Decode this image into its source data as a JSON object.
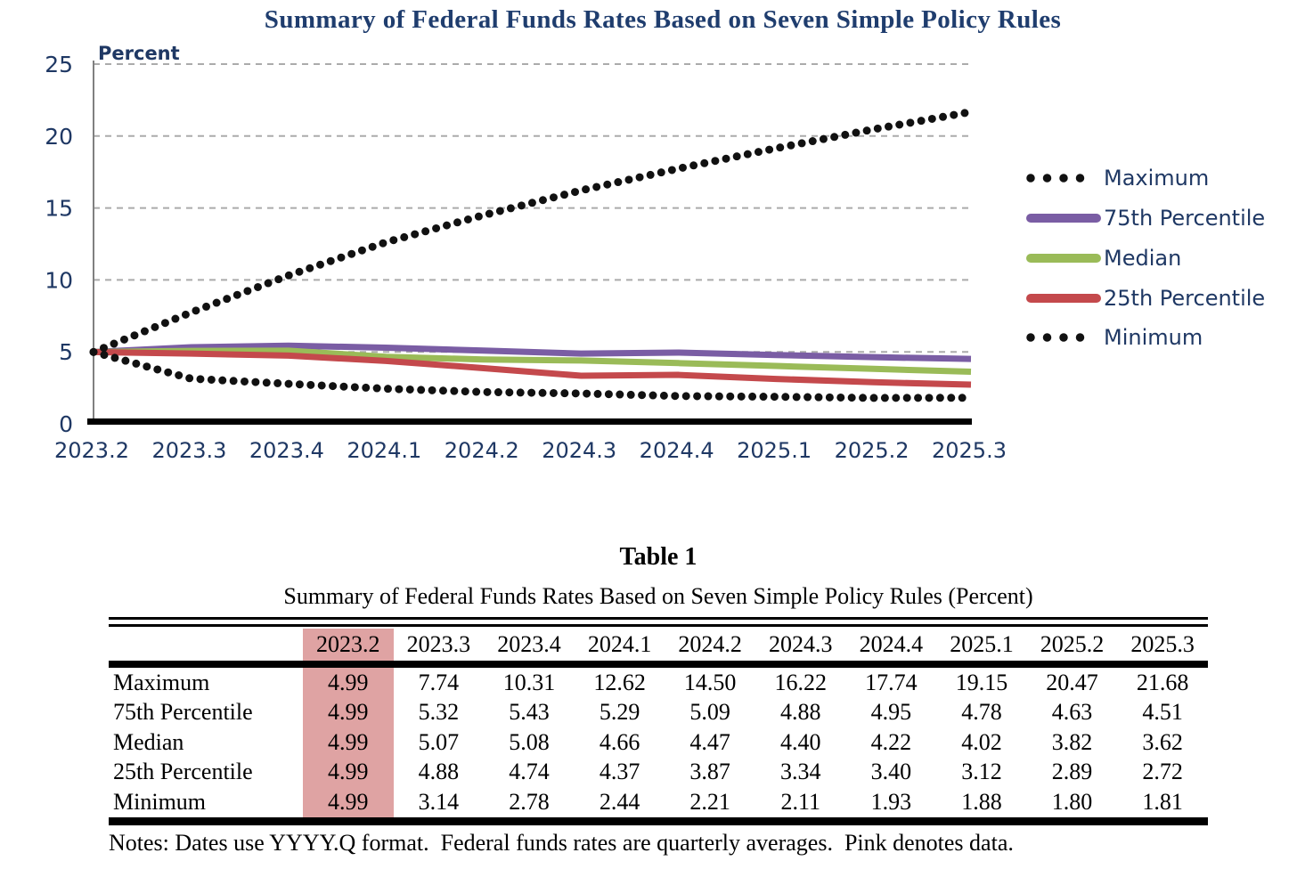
{
  "title": "Summary of Federal Funds Rates Based on Seven Simple Policy Rules",
  "chart_data": {
    "type": "line",
    "title": "Summary of Federal Funds Rates Based on Seven Simple Policy Rules",
    "ylabel": "Percent",
    "xlabel": "",
    "ylim": [
      0,
      25
    ],
    "y_ticks": [
      0,
      5,
      10,
      15,
      20,
      25
    ],
    "grid": true,
    "legend_position": "right",
    "categories": [
      "2023.2",
      "2023.3",
      "2023.4",
      "2024.1",
      "2024.2",
      "2024.3",
      "2024.4",
      "2025.1",
      "2025.2",
      "2025.3"
    ],
    "series": [
      {
        "name": "Maximum",
        "style": "dotted",
        "color": "#111111",
        "values": [
          4.99,
          7.74,
          10.31,
          12.62,
          14.5,
          16.22,
          17.74,
          19.15,
          20.47,
          21.68
        ]
      },
      {
        "name": "75th Percentile",
        "style": "solid",
        "color": "#7A5DA4",
        "values": [
          4.99,
          5.32,
          5.43,
          5.29,
          5.09,
          4.88,
          4.95,
          4.78,
          4.63,
          4.51
        ]
      },
      {
        "name": "Median",
        "style": "solid",
        "color": "#9ABB58",
        "values": [
          4.99,
          5.07,
          5.08,
          4.66,
          4.47,
          4.4,
          4.22,
          4.02,
          3.82,
          3.62
        ]
      },
      {
        "name": "25th Percentile",
        "style": "solid",
        "color": "#C4494C",
        "values": [
          4.99,
          4.88,
          4.74,
          4.37,
          3.87,
          3.34,
          3.4,
          3.12,
          2.89,
          2.72
        ]
      },
      {
        "name": "Minimum",
        "style": "dotted",
        "color": "#111111",
        "values": [
          4.99,
          3.14,
          2.78,
          2.44,
          2.21,
          2.11,
          1.93,
          1.88,
          1.8,
          1.81
        ]
      }
    ]
  },
  "table": {
    "title": "Table 1",
    "subtitle": "Summary of Federal Funds Rates Based on Seven Simple Policy Rules (Percent)",
    "columns": [
      "",
      "2023.2",
      "2023.3",
      "2023.4",
      "2024.1",
      "2024.2",
      "2024.3",
      "2024.4",
      "2025.1",
      "2025.2",
      "2025.3"
    ],
    "highlight_column_index": 1,
    "highlight_color": "#DFA3A3",
    "rows": [
      {
        "label": "Maximum",
        "values": [
          "4.99",
          "7.74",
          "10.31",
          "12.62",
          "14.50",
          "16.22",
          "17.74",
          "19.15",
          "20.47",
          "21.68"
        ]
      },
      {
        "label": "75th Percentile",
        "values": [
          "4.99",
          "5.32",
          "5.43",
          "5.29",
          "5.09",
          "4.88",
          "4.95",
          "4.78",
          "4.63",
          "4.51"
        ]
      },
      {
        "label": "Median",
        "values": [
          "4.99",
          "5.07",
          "5.08",
          "4.66",
          "4.47",
          "4.40",
          "4.22",
          "4.02",
          "3.82",
          "3.62"
        ]
      },
      {
        "label": "25th Percentile",
        "values": [
          "4.99",
          "4.88",
          "4.74",
          "4.37",
          "3.87",
          "3.34",
          "3.40",
          "3.12",
          "2.89",
          "2.72"
        ]
      },
      {
        "label": "Minimum",
        "values": [
          "4.99",
          "3.14",
          "2.78",
          "2.44",
          "2.21",
          "2.11",
          "1.93",
          "1.88",
          "1.80",
          "1.81"
        ]
      }
    ],
    "notes": "Notes: Dates use YYYY.Q format.  Federal funds rates are quarterly averages.  Pink denotes data."
  },
  "colors": {
    "navy_text": "#1F3864",
    "grid_line": "#ABABAB",
    "y_axis_line": "#808080",
    "x_axis_line": "#000000",
    "dotted_series": "#111111",
    "purple_series": "#7A5DA4",
    "green_series": "#9ABB58",
    "red_series": "#C4494C",
    "pink_highlight": "#DFA3A3"
  }
}
